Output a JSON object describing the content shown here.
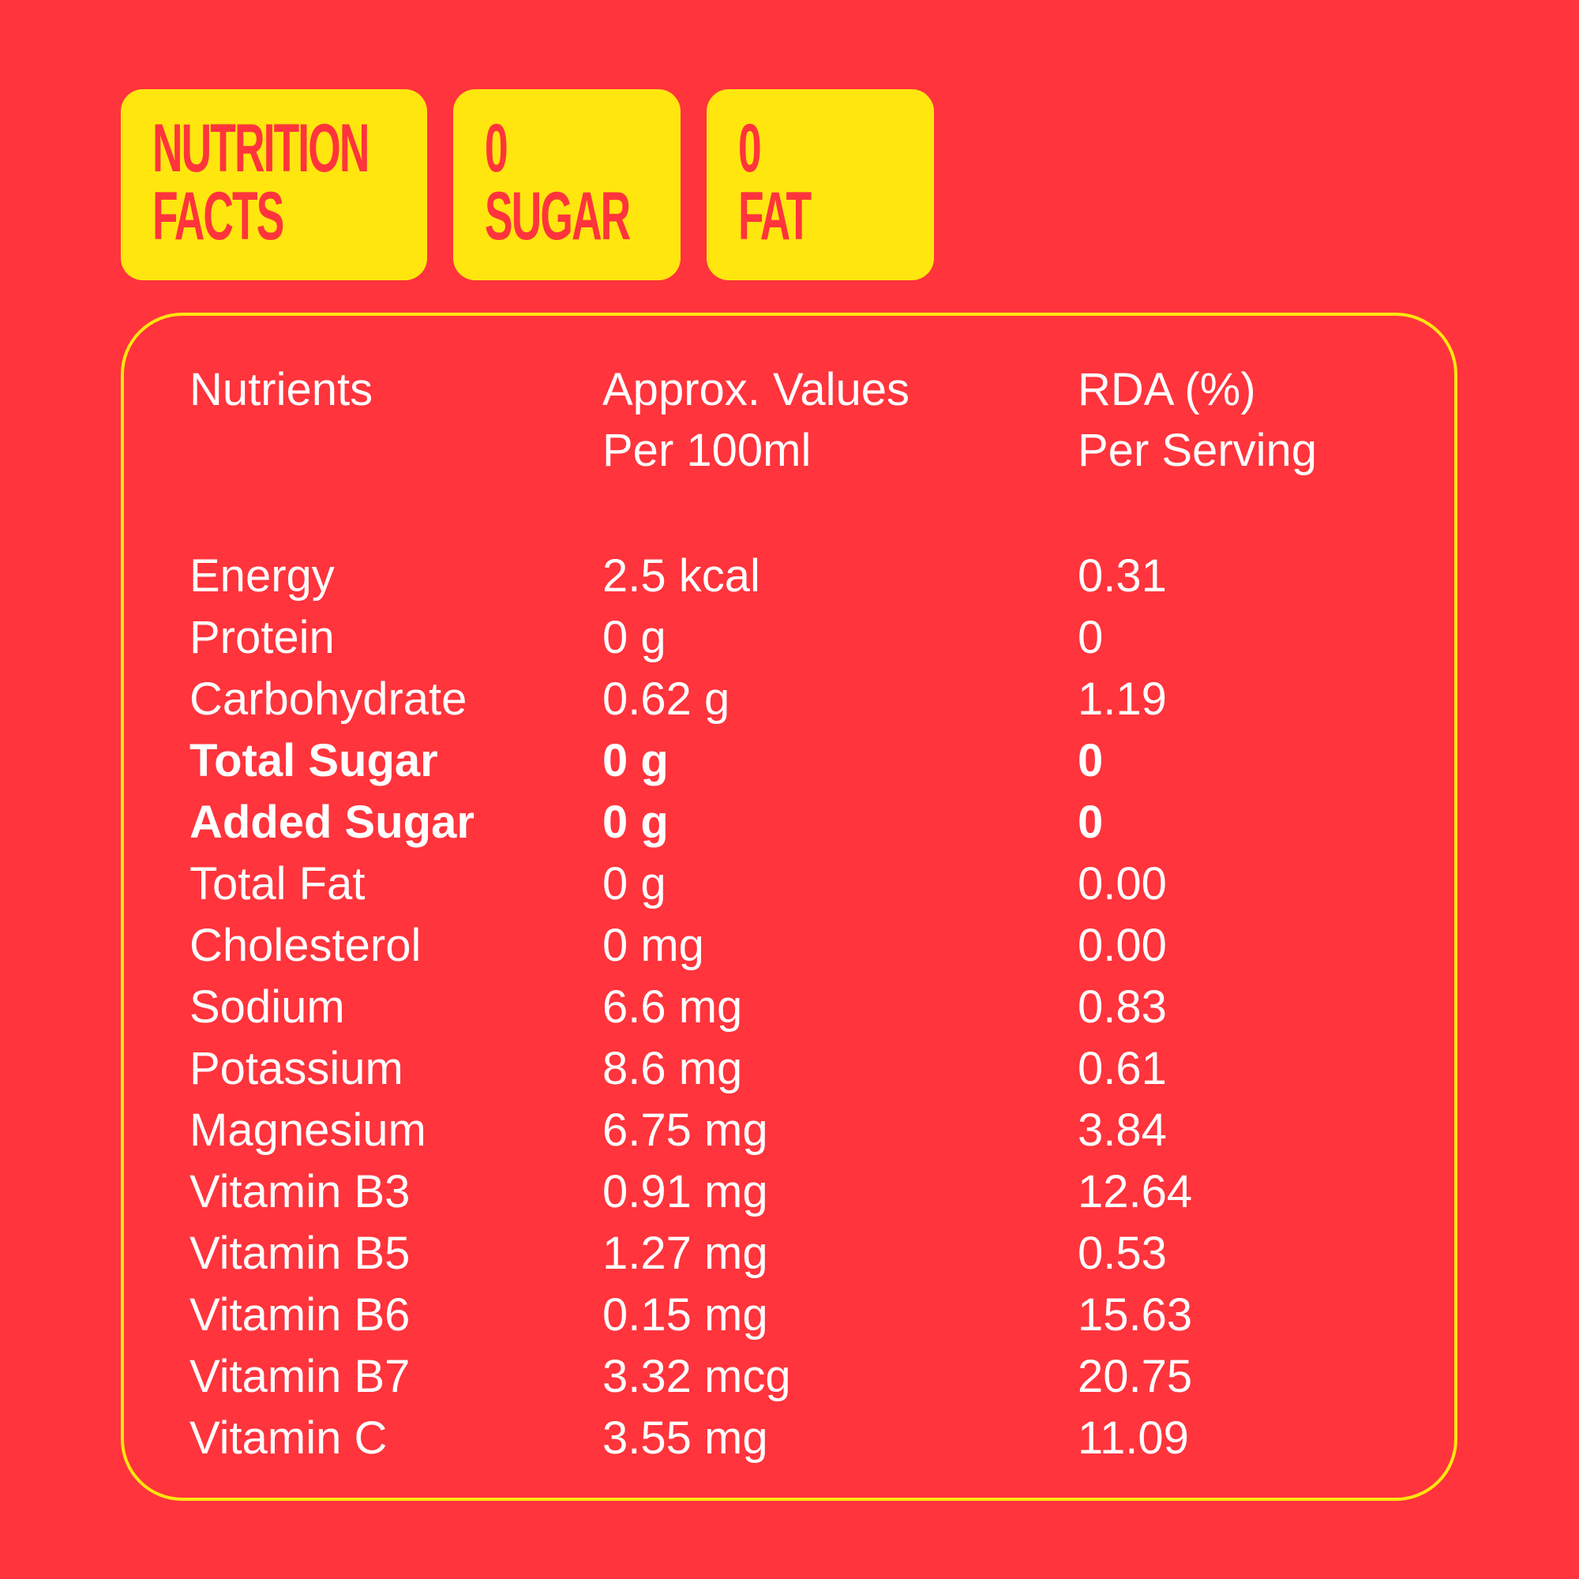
{
  "badges": {
    "nutrition": {
      "line1": "NUTRITION",
      "line2": "FACTS"
    },
    "sugar": {
      "line1": "0",
      "line2": "SUGAR"
    },
    "fat": {
      "line1": "0",
      "line2": "FAT"
    }
  },
  "table": {
    "headers": {
      "nutrients": "Nutrients",
      "approx_line1": "Approx. Values",
      "approx_line2": "Per 100ml",
      "rda_line1": "RDA (%)",
      "rda_line2": "Per Serving"
    },
    "rows": [
      {
        "name": "Energy",
        "value": "2.5 kcal",
        "rda": "0.31",
        "bold": false
      },
      {
        "name": "Protein",
        "value": "0 g",
        "rda": "0",
        "bold": false
      },
      {
        "name": "Carbohydrate",
        "value": "0.62 g",
        "rda": "1.19",
        "bold": false
      },
      {
        "name": "Total Sugar",
        "value": "0 g",
        "rda": "0",
        "bold": true
      },
      {
        "name": "Added Sugar",
        "value": "0 g",
        "rda": "0",
        "bold": true
      },
      {
        "name": "Total Fat",
        "value": "0 g",
        "rda": "0.00",
        "bold": false
      },
      {
        "name": "Cholesterol",
        "value": "0 mg",
        "rda": "0.00",
        "bold": false
      },
      {
        "name": "Sodium",
        "value": "6.6 mg",
        "rda": "0.83",
        "bold": false
      },
      {
        "name": "Potassium",
        "value": "8.6 mg",
        "rda": "0.61",
        "bold": false
      },
      {
        "name": "Magnesium",
        "value": "6.75 mg",
        "rda": "3.84",
        "bold": false
      },
      {
        "name": "Vitamin B3",
        "value": "0.91 mg",
        "rda": "12.64",
        "bold": false
      },
      {
        "name": "Vitamin B5",
        "value": "1.27 mg",
        "rda": "0.53",
        "bold": false
      },
      {
        "name": "Vitamin B6",
        "value": "0.15 mg",
        "rda": "15.63",
        "bold": false
      },
      {
        "name": "Vitamin B7",
        "value": "3.32 mcg",
        "rda": "20.75",
        "bold": false
      },
      {
        "name": "Vitamin C",
        "value": "3.55 mg",
        "rda": "11.09",
        "bold": false
      }
    ]
  },
  "colors": {
    "background": "#ff343c",
    "accent": "#ffe60f",
    "text": "#ffffff"
  }
}
